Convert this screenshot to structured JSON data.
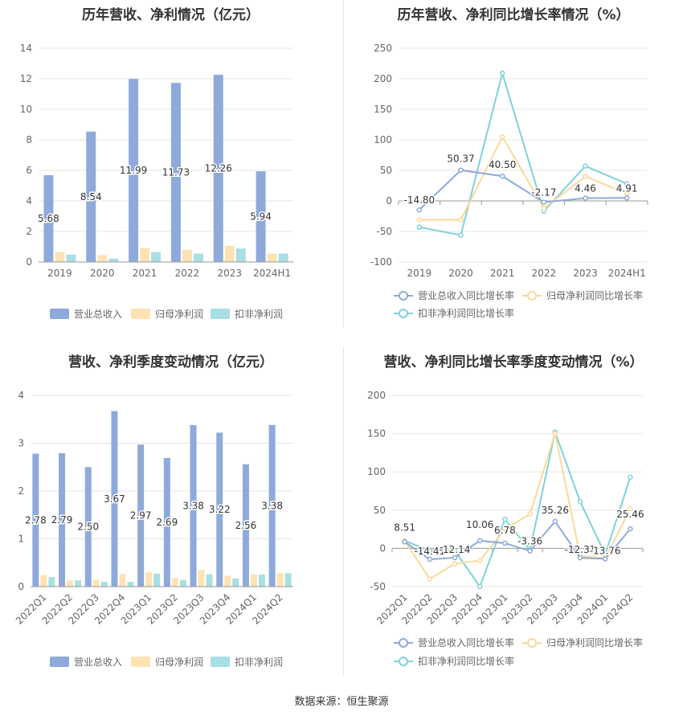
{
  "footer": "数据来源：恒生聚源",
  "colors": {
    "revenue": "#8eaadb",
    "parent_profit": "#fde3b3",
    "deducted_profit": "#a8dfe3",
    "revenue_line": "#8eaadb",
    "parent_line": "#fcd89a",
    "deducted_line": "#7fd3d9"
  },
  "chart_data": [
    {
      "type": "bar",
      "title": "历年营收、净利情况（亿元）",
      "categories": [
        "2019",
        "2020",
        "2021",
        "2022",
        "2023",
        "2024H1"
      ],
      "ylim": [
        0,
        14
      ],
      "yticks": [
        0,
        2,
        4,
        6,
        8,
        10,
        12,
        14
      ],
      "series": [
        {
          "name": "营业总收入",
          "values": [
            5.68,
            8.54,
            11.99,
            11.73,
            12.26,
            5.94
          ],
          "labels": [
            "5.68",
            "8.54",
            "11.99",
            "11.73",
            "12.26",
            "5.94"
          ]
        },
        {
          "name": "归母净利润",
          "values": [
            0.65,
            0.45,
            0.92,
            0.8,
            1.05,
            0.55
          ]
        },
        {
          "name": "扣非净利润",
          "values": [
            0.48,
            0.22,
            0.65,
            0.55,
            0.88,
            0.55
          ]
        }
      ],
      "legend": "bottom"
    },
    {
      "type": "line",
      "title": "历年营收、净利同比增长率情况（%）",
      "categories": [
        "2019",
        "2020",
        "2021",
        "2022",
        "2023",
        "2024H1"
      ],
      "ylim": [
        -100,
        250
      ],
      "yticks": [
        -100,
        -50,
        0,
        50,
        100,
        150,
        200,
        250
      ],
      "series": [
        {
          "name": "营业总收入同比增长率",
          "values": [
            -14.8,
            50.37,
            40.5,
            -2.17,
            4.46,
            4.91
          ],
          "labels": [
            "-14.80",
            "50.37",
            "40.50",
            "-2.17",
            "4.46",
            "4.91"
          ]
        },
        {
          "name": "归母净利润同比增长率",
          "values": [
            -31,
            -31,
            105,
            -12,
            40,
            12
          ]
        },
        {
          "name": "扣非净利润同比增长率",
          "values": [
            -43,
            -56,
            209,
            -17,
            57,
            28
          ]
        }
      ],
      "legend": "bottom"
    },
    {
      "type": "bar",
      "title": "营收、净利季度变动情况（亿元）",
      "categories": [
        "2022Q1",
        "2022Q2",
        "2022Q3",
        "2022Q4",
        "2023Q1",
        "2023Q2",
        "2023Q3",
        "2023Q4",
        "2024Q1",
        "2024Q2"
      ],
      "ylim": [
        0,
        4
      ],
      "yticks": [
        0,
        1,
        2,
        3,
        4
      ],
      "series": [
        {
          "name": "营业总收入",
          "values": [
            2.78,
            2.79,
            2.5,
            3.67,
            2.97,
            2.69,
            3.38,
            3.22,
            2.56,
            3.38
          ],
          "labels": [
            "2.78",
            "2.79",
            "2.50",
            "3.67",
            "2.97",
            "2.69",
            "3.38",
            "3.22",
            "2.56",
            "3.38"
          ]
        },
        {
          "name": "归母净利润",
          "values": [
            0.24,
            0.13,
            0.14,
            0.26,
            0.3,
            0.18,
            0.35,
            0.23,
            0.26,
            0.28
          ]
        },
        {
          "name": "扣非净利润",
          "values": [
            0.2,
            0.13,
            0.1,
            0.1,
            0.27,
            0.14,
            0.26,
            0.17,
            0.25,
            0.28
          ]
        }
      ],
      "legend": "bottom"
    },
    {
      "type": "line",
      "title": "营收、净利同比增长率季度变动情况（%）",
      "categories": [
        "2022Q1",
        "2022Q2",
        "2022Q3",
        "2022Q4",
        "2023Q1",
        "2023Q2",
        "2023Q3",
        "2023Q4",
        "2024Q1",
        "2024Q2"
      ],
      "ylim": [
        -50,
        200
      ],
      "yticks": [
        -50,
        0,
        50,
        100,
        150,
        200
      ],
      "series": [
        {
          "name": "营业总收入同比增长率",
          "values": [
            8.51,
            -14.41,
            -12.14,
            10.06,
            6.78,
            -3.36,
            35.26,
            -12.31,
            -13.76,
            25.46
          ],
          "labels": [
            "8.51",
            "-14.41",
            "-12.14",
            "10.06",
            "6.78",
            "-3.36",
            "35.26",
            "-12.31",
            "-13.76",
            "25.46"
          ]
        },
        {
          "name": "归母净利润同比增长率",
          "values": [
            10,
            -40,
            -20,
            -16,
            25,
            45,
            150,
            -10,
            -13,
            52
          ]
        },
        {
          "name": "扣非净利润同比增长率",
          "values": [
            10,
            -3,
            -3,
            -50,
            38,
            -2,
            152,
            61,
            -8,
            93
          ]
        }
      ],
      "legend": "bottom"
    }
  ]
}
